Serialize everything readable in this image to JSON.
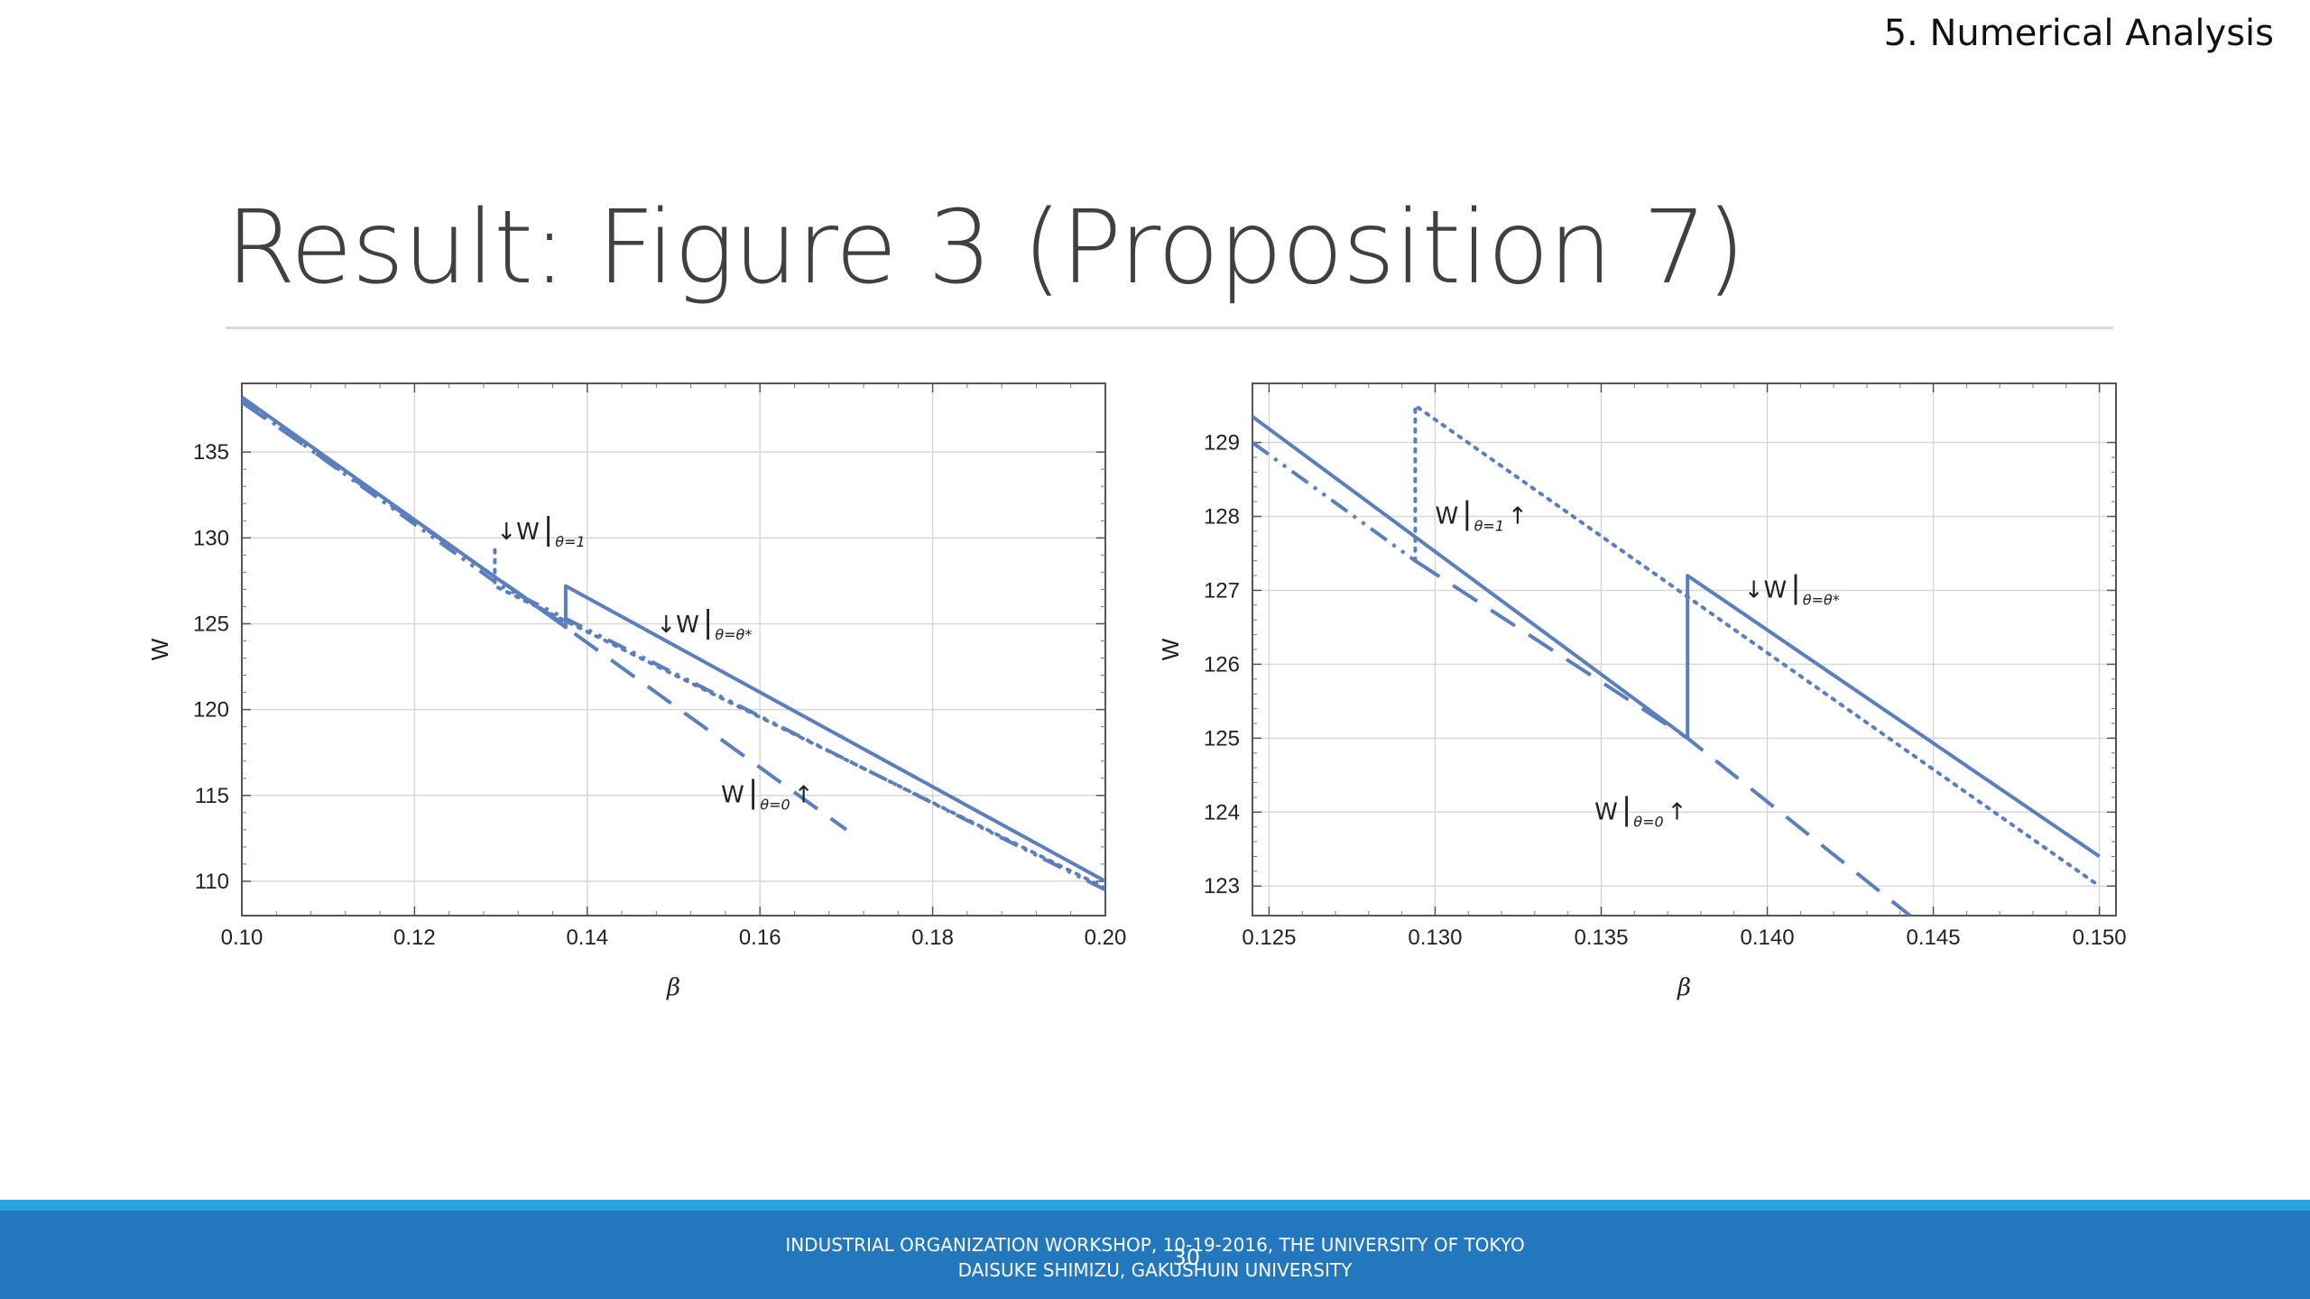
{
  "header": {
    "section_label": "5. Numerical Analysis",
    "title": "Result: Figure 3 (Proposition 7)"
  },
  "footer": {
    "line1": "INDUSTRIAL ORGANIZATION WORKSHOP, 10-19-2016, THE UNIVERSITY OF TOKYO",
    "line2": "DAISUKE SHIMIZU, GAKUSHUIN UNIVERSITY",
    "page_number": "30"
  },
  "colors": {
    "series": "#5b7fbd",
    "grid": "#d8d8d8",
    "footer": "#2277bd",
    "footer_stripe": "#28a4e0"
  },
  "chart_data": [
    {
      "type": "line",
      "title": "",
      "xlabel": "β",
      "ylabel": "W",
      "xlim": [
        0.1,
        0.2
      ],
      "ylim": [
        108.0,
        139.0
      ],
      "xticks": [
        0.1,
        0.12,
        0.14,
        0.16,
        0.18,
        0.2
      ],
      "xtick_labels": [
        "0.10",
        "0.12",
        "0.14",
        "0.16",
        "0.18",
        "0.20"
      ],
      "yticks": [
        110,
        115,
        120,
        125,
        130,
        135
      ],
      "ytick_labels": [
        "110",
        "115",
        "120",
        "125",
        "130",
        "135"
      ],
      "grid": true,
      "series": [
        {
          "key": "opt",
          "style": "solid",
          "points": [
            [
              0.1,
              138.2
            ],
            [
              0.1375,
              124.8
            ],
            [
              0.1375,
              127.2
            ],
            [
              0.2,
              110.0
            ]
          ]
        },
        {
          "key": "theta1",
          "style": "dotted",
          "points": [
            [
              0.1293,
              129.3
            ],
            [
              0.1293,
              127.2
            ],
            [
              0.2,
              109.6
            ]
          ]
        },
        {
          "key": "theta0",
          "style": "dashed",
          "points": [
            [
              0.1,
              137.9
            ],
            [
              0.1375,
              124.9
            ],
            [
              0.1375,
              124.8
            ],
            [
              0.17,
              113.0
            ]
          ]
        },
        {
          "key": "dashdot",
          "style": "dashdot",
          "points": [
            [
              0.1,
              138.0
            ],
            [
              0.13,
              127.2
            ],
            [
              0.2,
              109.5
            ]
          ]
        }
      ],
      "annotations": [
        {
          "text": "↓W",
          "sub": "θ=1",
          "x": 0.1295,
          "y": 129.9
        },
        {
          "text": "↓W",
          "sub": "θ=θ*",
          "x": 0.148,
          "y": 124.5
        },
        {
          "text": "W",
          "sub": "θ=0",
          "arrow": "↑",
          "x": 0.1555,
          "y": 114.6
        }
      ]
    },
    {
      "type": "line",
      "title": "",
      "xlabel": "β",
      "ylabel": "W",
      "xlim": [
        0.1245,
        0.1505
      ],
      "ylim": [
        122.6,
        129.8
      ],
      "xticks": [
        0.125,
        0.13,
        0.135,
        0.14,
        0.145,
        0.15
      ],
      "xtick_labels": [
        "0.125",
        "0.130",
        "0.135",
        "0.140",
        "0.145",
        "0.150"
      ],
      "yticks": [
        123,
        124,
        125,
        126,
        127,
        128,
        129
      ],
      "ytick_labels": [
        "123",
        "124",
        "125",
        "126",
        "127",
        "128",
        "129"
      ],
      "grid": true,
      "series": [
        {
          "key": "opt",
          "style": "solid",
          "points": [
            [
              0.1245,
              129.35
            ],
            [
              0.1376,
              125.0
            ],
            [
              0.1376,
              127.2
            ],
            [
              0.15,
              123.4
            ]
          ]
        },
        {
          "key": "theta1",
          "style": "dotted",
          "points": [
            [
              0.1294,
              127.4
            ],
            [
              0.1294,
              129.5
            ],
            [
              0.15,
              123.0
            ]
          ]
        },
        {
          "key": "theta0",
          "style": "dashed",
          "points": [
            [
              0.1294,
              127.4
            ],
            [
              0.1376,
              125.0
            ],
            [
              0.1443,
              122.6
            ]
          ]
        },
        {
          "key": "dashdot",
          "style": "dashdot",
          "points": [
            [
              0.1245,
              129.0
            ],
            [
              0.1294,
              127.4
            ]
          ]
        }
      ],
      "annotations": [
        {
          "text": "W",
          "sub": "θ=1",
          "arrow": "↑",
          "x": 0.13,
          "y": 127.9
        },
        {
          "text": "↓W",
          "sub": "θ=θ*",
          "x": 0.1393,
          "y": 126.9
        },
        {
          "text": "W",
          "sub": "θ=0",
          "arrow": "↑",
          "x": 0.1348,
          "y": 123.9
        }
      ]
    }
  ]
}
